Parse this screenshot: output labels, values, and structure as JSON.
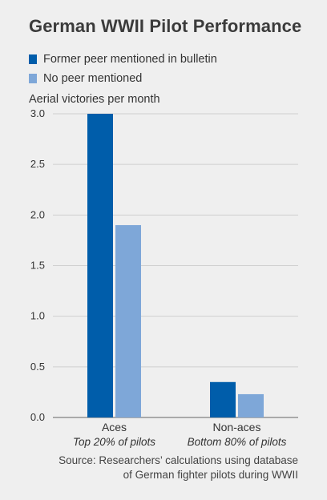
{
  "title": "German WWII Pilot Performance",
  "source": [
    "Source: Researchers’ calculations using database",
    "of German fighter pilots during WWII"
  ],
  "chart_data": {
    "type": "bar",
    "ylabel": "Aerial victories per month",
    "xlabel": "",
    "ylim": [
      0,
      3.0
    ],
    "yticks": [
      0.0,
      0.5,
      1.0,
      1.5,
      2.0,
      2.5,
      3.0
    ],
    "ytick_labels": [
      "0.0",
      "0.5",
      "1.0",
      "1.5",
      "2.0",
      "2.5",
      "3.0"
    ],
    "grid": true,
    "legend_position": "top-left",
    "categories": [
      "Aces",
      "Non-aces"
    ],
    "category_subtitles": [
      "Top 20% of pilots",
      "Bottom 80% of pilots"
    ],
    "series": [
      {
        "name": "Former peer mentioned in bulletin",
        "color": "#005daa",
        "values": [
          3.0,
          0.35
        ]
      },
      {
        "name": "No peer mentioned",
        "color": "#7ea7d8",
        "values": [
          1.9,
          0.23
        ]
      }
    ]
  }
}
